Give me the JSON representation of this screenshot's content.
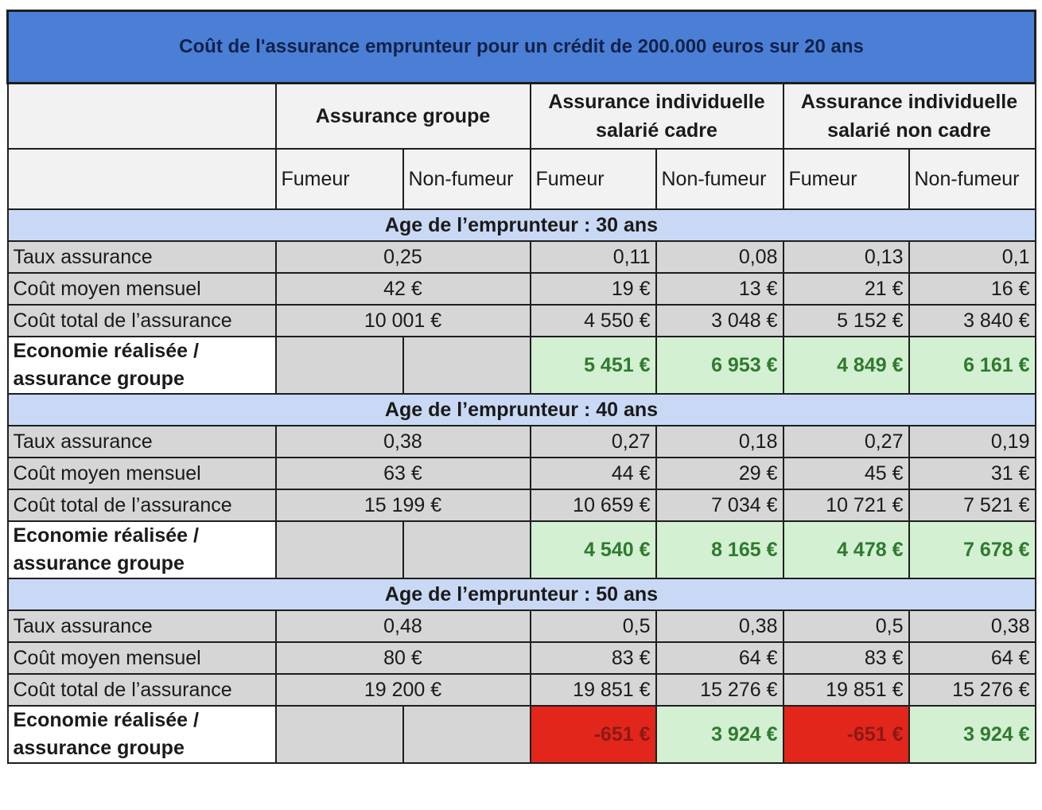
{
  "title": "Coût de l'assurance emprunteur pour un crédit de 200.000 euros sur 20 ans",
  "groups": [
    "Assurance groupe",
    "Assurance individuelle salarié cadre",
    "Assurance individuelle salarié non cadre"
  ],
  "sub_headers": [
    "Fumeur",
    "Non-fumeur",
    "Fumeur",
    "Non-fumeur",
    "Fumeur",
    "Non-fumeur"
  ],
  "row_labels": {
    "taux": "Taux assurance",
    "mensuel": "Coût moyen mensuel",
    "total": "Coût total de l’assurance",
    "economie": "Economie réalisée / assurance groupe"
  },
  "sections": [
    {
      "age_label": "Age de l’emprunteur : 30 ans",
      "taux": [
        "0,25",
        "0,11",
        "0,08",
        "0,13",
        "0,1"
      ],
      "mensuel": [
        "42 €",
        "19 €",
        "13 €",
        "21 €",
        "16 €"
      ],
      "total": [
        "10 001 €",
        "4 550 €",
        "3 048 €",
        "5 152 €",
        "3 840 €"
      ],
      "economie": [
        "5 451 €",
        "6 953 €",
        "4 849 €",
        "6 161 €"
      ]
    },
    {
      "age_label": "Age de l’emprunteur : 40 ans",
      "taux": [
        "0,38",
        "0,27",
        "0,18",
        "0,27",
        "0,19"
      ],
      "mensuel": [
        "63 €",
        "44 €",
        "29 €",
        "45 €",
        "31 €"
      ],
      "total": [
        "15 199 €",
        "10 659 €",
        "7 034 €",
        "10 721 €",
        "7 521 €"
      ],
      "economie": [
        "4 540 €",
        "8 165 €",
        "4 478 €",
        "7 678 €"
      ]
    },
    {
      "age_label": "Age de l’emprunteur : 50 ans",
      "taux": [
        "0,48",
        "0,5",
        "0,38",
        "0,5",
        "0,38"
      ],
      "mensuel": [
        "80 €",
        "83 €",
        "64 €",
        "83 €",
        "64 €"
      ],
      "total": [
        "19 200 €",
        "19 851 €",
        "15 276 €",
        "19 851 €",
        "15 276 €"
      ],
      "economie": [
        "-651 €",
        "3 924 €",
        "-651 €",
        "3 924 €"
      ]
    }
  ],
  "colors": {
    "title_bg": "#4b7fd6",
    "age_bg": "#c9d9f5",
    "row_bg": "#d6d6d6",
    "positive_bg": "#d3f0d2",
    "negative_bg": "#e3261c"
  }
}
